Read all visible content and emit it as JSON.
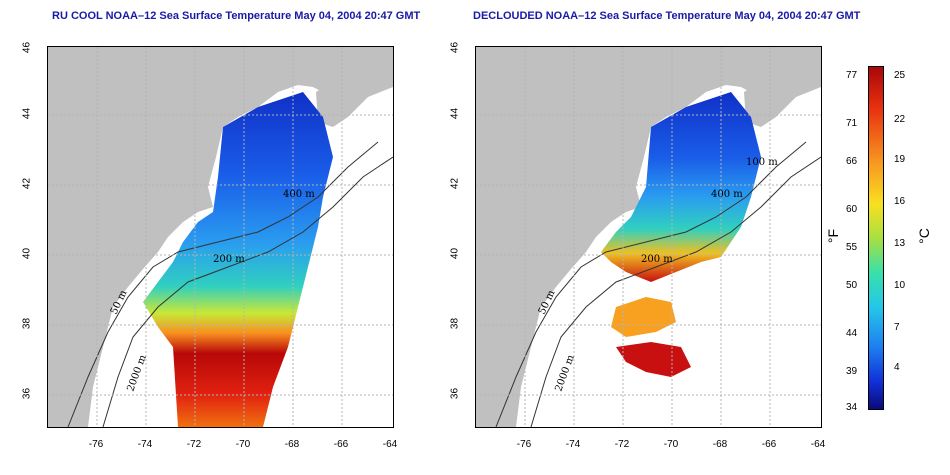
{
  "left_panel": {
    "title": "RU COOL NOAA–12 Sea Surface Temperature May 04, 2004 20:47 GMT"
  },
  "right_panel": {
    "title": "DECLOUDED NOAA–12 Sea Surface Temperature May 04, 2004 20:47 GMT"
  },
  "axes": {
    "x_ticks": [
      "-76",
      "-74",
      "-72",
      "-70",
      "-68",
      "-66",
      "-64"
    ],
    "y_ticks": [
      "36",
      "38",
      "40",
      "42",
      "44",
      "46"
    ]
  },
  "contour_labels": [
    "50 m",
    "200 m",
    "400 m",
    "2000 m",
    "100 m"
  ],
  "colorbar": {
    "fahrenheit_ticks": [
      "77",
      "71",
      "66",
      "60",
      "55",
      "50",
      "44",
      "39",
      "34"
    ],
    "celsius_ticks": [
      "25",
      "22",
      "19",
      "16",
      "13",
      "10",
      "7",
      "4"
    ],
    "fahrenheit_unit": "°F",
    "celsius_unit": "°C",
    "colors": [
      "#0a0a7a",
      "#1030d8",
      "#1e7ef0",
      "#24c8e8",
      "#3ae0a8",
      "#a8e040",
      "#f8e020",
      "#f89820",
      "#e83010",
      "#a80808"
    ]
  },
  "colors": {
    "land": "#c0c0c0",
    "ocean": "#ffffff",
    "title": "#1a1aa8",
    "grid": "#b4b4b4"
  }
}
